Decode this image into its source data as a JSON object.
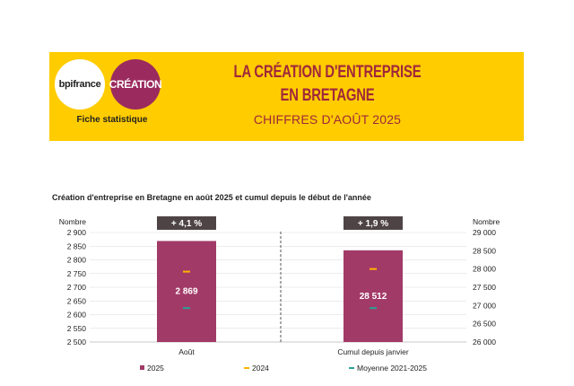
{
  "header": {
    "logo_bpi": "bpifrance",
    "logo_creation": "CRÉATION",
    "fiche": "Fiche statistique",
    "title_line1": "LA CRÉATION D'ENTREPRISE",
    "title_line2": "EN BRETAGNE",
    "subtitle": "CHIFFRES D'AOÛT 2025"
  },
  "colors": {
    "banner": "#ffcc00",
    "bar_2025": "#a23a68",
    "marker_2024": "#ffb300",
    "marker_avg": "#2aa198",
    "badge": "#4e4446",
    "title": "#a0283b"
  },
  "chart_data": {
    "type": "bar",
    "title": "Création d'entreprise en Bretagne en août 2025 et cumul depuis le début de l'année",
    "left_axis": {
      "label": "Nombre",
      "ylim": [
        2500,
        2900
      ],
      "ticks": [
        2500,
        2550,
        2600,
        2650,
        2700,
        2750,
        2800,
        2850,
        2900
      ],
      "tick_labels": [
        "2 500",
        "2 550",
        "2 600",
        "2 650",
        "2 700",
        "2 750",
        "2 800",
        "2 850",
        "2 900"
      ]
    },
    "right_axis": {
      "label": "Nombre",
      "ylim": [
        26000,
        29000
      ],
      "ticks": [
        26000,
        26500,
        27000,
        27500,
        28000,
        28500,
        29000
      ],
      "tick_labels": [
        "26 000",
        "26 500",
        "27 000",
        "27 500",
        "28 000",
        "28 500",
        "29 000"
      ]
    },
    "categories": [
      "Août",
      "Cumul depuis janvier"
    ],
    "series": [
      {
        "name": "2025",
        "values": [
          2869,
          28512
        ],
        "labels": [
          "2 869",
          "28 512"
        ]
      },
      {
        "name": "2024",
        "values": [
          2757,
          28000
        ]
      },
      {
        "name": "Moyenne 2021-2025",
        "values": [
          2624,
          26930
        ]
      }
    ],
    "badges": [
      "+ 4,1 %",
      "+ 1,9 %"
    ],
    "legend": [
      "2025",
      "2024",
      "Moyenne 2021-2025"
    ]
  }
}
